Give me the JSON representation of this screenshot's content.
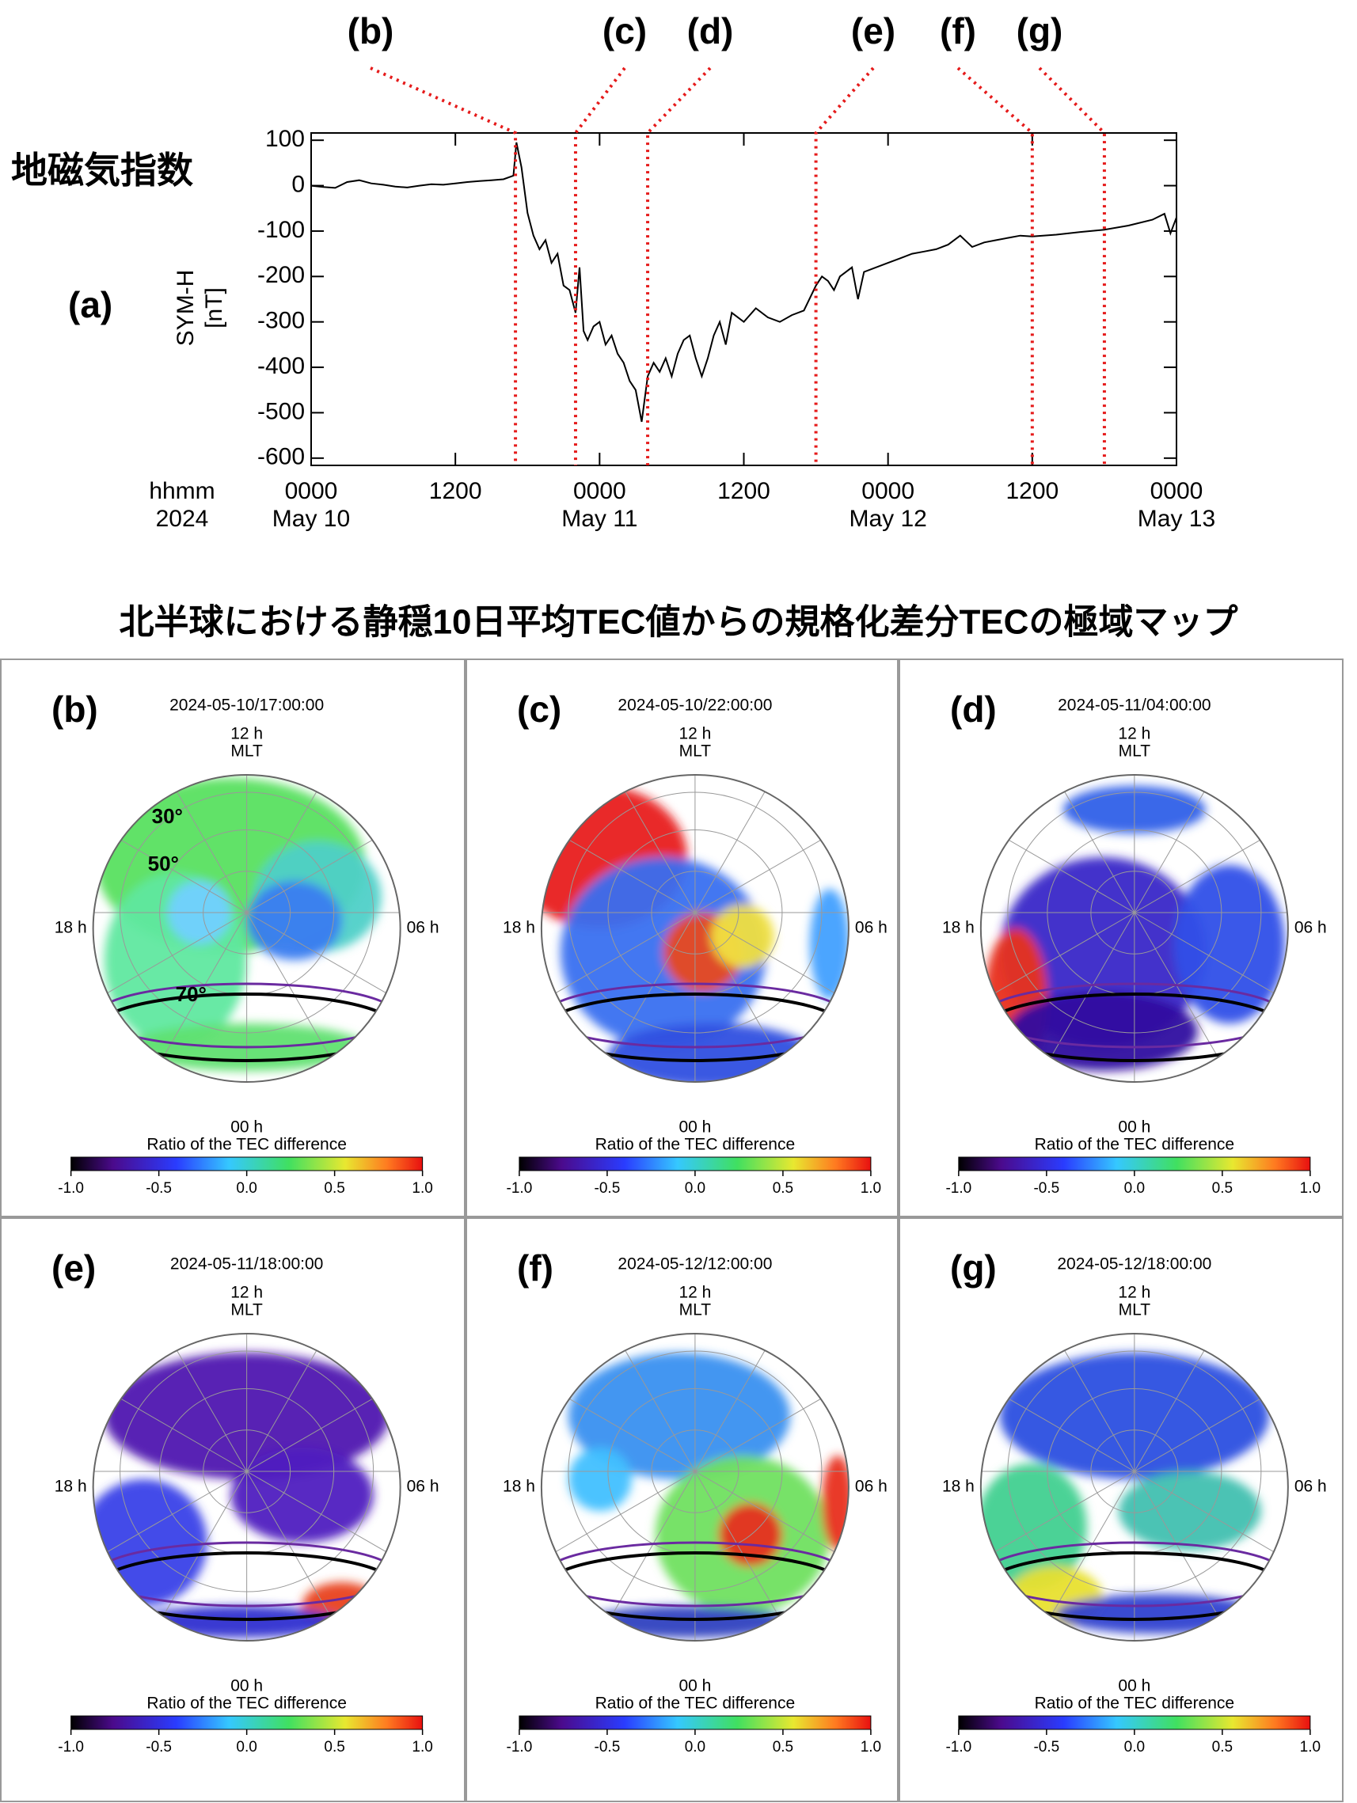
{
  "chart_data": {
    "type": "line",
    "annotations": [
      "(a)",
      "地磁気指数"
    ],
    "ylabel": [
      "SYM-H",
      "[nT]"
    ],
    "x_label": [
      "hhmm",
      "2024"
    ],
    "color": "#000000",
    "xlim": [
      "2024-05-10T00:00",
      "2024-05-13T00:00"
    ],
    "xticks": [
      {
        "value": "2024-05-10T00:00",
        "label": "0000",
        "date": "May 10"
      },
      {
        "value": "2024-05-10T12:00",
        "label": "1200"
      },
      {
        "value": "2024-05-11T00:00",
        "label": "0000",
        "date": "May 11"
      },
      {
        "value": "2024-05-11T12:00",
        "label": "1200"
      },
      {
        "value": "2024-05-12T00:00",
        "label": "0000",
        "date": "May 12"
      },
      {
        "value": "2024-05-12T12:00",
        "label": "1200"
      },
      {
        "value": "2024-05-13T00:00",
        "label": "0000",
        "date": "May 13"
      }
    ],
    "ylim": [
      -616,
      116
    ],
    "yticks": [
      100,
      0,
      -100,
      -200,
      -300,
      -400,
      -500,
      -600
    ],
    "events": [
      {
        "label": "(b)",
        "x": "2024-05-10T17:00"
      },
      {
        "label": "(c)",
        "x": "2024-05-10T22:00"
      },
      {
        "label": "(d)",
        "x": "2024-05-11T04:00"
      },
      {
        "label": "(e)",
        "x": "2024-05-11T18:00"
      },
      {
        "label": "(f)",
        "x": "2024-05-12T12:00"
      },
      {
        "label": "(g)",
        "x": "2024-05-12T18:00"
      }
    ],
    "x": [
      "2024-05-10T00:00",
      "2024-05-10T01:00",
      "2024-05-10T02:00",
      "2024-05-10T03:00",
      "2024-05-10T04:00",
      "2024-05-10T05:00",
      "2024-05-10T06:00",
      "2024-05-10T07:00",
      "2024-05-10T08:00",
      "2024-05-10T09:00",
      "2024-05-10T10:00",
      "2024-05-10T11:00",
      "2024-05-10T12:00",
      "2024-05-10T13:00",
      "2024-05-10T14:00",
      "2024-05-10T15:00",
      "2024-05-10T16:00",
      "2024-05-10T16:50",
      "2024-05-10T17:05",
      "2024-05-10T17:30",
      "2024-05-10T18:00",
      "2024-05-10T18:30",
      "2024-05-10T19:00",
      "2024-05-10T19:30",
      "2024-05-10T20:00",
      "2024-05-10T20:30",
      "2024-05-10T21:00",
      "2024-05-10T21:30",
      "2024-05-10T22:00",
      "2024-05-10T22:20",
      "2024-05-10T22:40",
      "2024-05-10T23:00",
      "2024-05-10T23:30",
      "2024-05-11T00:00",
      "2024-05-11T00:30",
      "2024-05-11T01:00",
      "2024-05-11T01:30",
      "2024-05-11T02:00",
      "2024-05-11T02:30",
      "2024-05-11T03:00",
      "2024-05-11T03:30",
      "2024-05-11T04:00",
      "2024-05-11T04:30",
      "2024-05-11T05:00",
      "2024-05-11T05:30",
      "2024-05-11T06:00",
      "2024-05-11T06:30",
      "2024-05-11T07:00",
      "2024-05-11T07:30",
      "2024-05-11T08:00",
      "2024-05-11T08:30",
      "2024-05-11T09:00",
      "2024-05-11T09:30",
      "2024-05-11T10:00",
      "2024-05-11T10:30",
      "2024-05-11T11:00",
      "2024-05-11T12:00",
      "2024-05-11T13:00",
      "2024-05-11T14:00",
      "2024-05-11T15:00",
      "2024-05-11T16:00",
      "2024-05-11T17:00",
      "2024-05-11T18:00",
      "2024-05-11T18:30",
      "2024-05-11T19:00",
      "2024-05-11T19:30",
      "2024-05-11T20:00",
      "2024-05-11T21:00",
      "2024-05-11T21:30",
      "2024-05-11T22:00",
      "2024-05-12T00:00",
      "2024-05-12T01:00",
      "2024-05-12T02:00",
      "2024-05-12T03:00",
      "2024-05-12T04:00",
      "2024-05-12T05:00",
      "2024-05-12T06:00",
      "2024-05-12T07:00",
      "2024-05-12T08:00",
      "2024-05-12T09:00",
      "2024-05-12T10:00",
      "2024-05-12T11:00",
      "2024-05-12T12:00",
      "2024-05-12T14:00",
      "2024-05-12T16:00",
      "2024-05-12T18:00",
      "2024-05-12T20:00",
      "2024-05-12T22:00",
      "2024-05-12T23:00",
      "2024-05-12T23:30",
      "2024-05-13T00:00"
    ],
    "values": [
      0,
      -3,
      -5,
      8,
      12,
      5,
      2,
      -2,
      -4,
      0,
      3,
      2,
      5,
      8,
      10,
      12,
      14,
      22,
      95,
      40,
      -60,
      -110,
      -140,
      -120,
      -170,
      -150,
      -220,
      -230,
      -280,
      -180,
      -320,
      -340,
      -310,
      -300,
      -350,
      -330,
      -370,
      -390,
      -430,
      -450,
      -520,
      -420,
      -390,
      -410,
      -380,
      -420,
      -370,
      -340,
      -330,
      -380,
      -420,
      -380,
      -330,
      -300,
      -350,
      -280,
      -300,
      -270,
      -290,
      -300,
      -285,
      -275,
      -220,
      -200,
      -210,
      -230,
      -200,
      -180,
      -250,
      -190,
      -170,
      -160,
      -150,
      -145,
      -140,
      -130,
      -110,
      -135,
      -125,
      -120,
      -115,
      -110,
      -112,
      -108,
      -102,
      -97,
      -88,
      -75,
      -62,
      -105,
      -70
    ]
  },
  "maps": {
    "title": "北半球における静穏10日平均TEC値からの規格化差分TECの極域マップ",
    "axis_labels": {
      "top": "12 h",
      "unit": "MLT",
      "left": "18 h",
      "right": "06 h",
      "bottom": "00 h"
    },
    "lat_labels": [
      "30°",
      "50°",
      "70°"
    ],
    "colorbar": {
      "title": "Ratio of the TEC difference",
      "lim": [
        -1,
        1
      ],
      "ticks": [
        {
          "value": -1,
          "label": "-1.0"
        },
        {
          "value": -0.5,
          "label": "-0.5"
        },
        {
          "value": 0,
          "label": "0.0"
        },
        {
          "value": 0.5,
          "label": "0.5"
        },
        {
          "value": 1,
          "label": "1.0"
        }
      ]
    },
    "panels": [
      {
        "label": "(b)",
        "time": "2024-05-10/17:00:00"
      },
      {
        "label": "(c)",
        "time": "2024-05-10/22:00:00"
      },
      {
        "label": "(d)",
        "time": "2024-05-11/04:00:00"
      },
      {
        "label": "(e)",
        "time": "2024-05-11/18:00:00"
      },
      {
        "label": "(f)",
        "time": "2024-05-12/12:00:00"
      },
      {
        "label": "(g)",
        "time": "2024-05-12/18:00:00"
      }
    ]
  }
}
